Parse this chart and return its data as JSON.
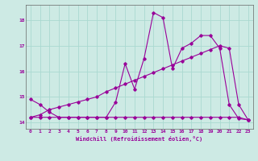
{
  "title": "",
  "xlabel": "Windchill (Refroidissement éolien,°C)",
  "ylabel": "",
  "background_color": "#cdeae4",
  "line_color": "#990099",
  "grid_color": "#aad9d0",
  "xlim": [
    -0.5,
    23.5
  ],
  "ylim": [
    13.75,
    18.6
  ],
  "yticks": [
    14,
    15,
    16,
    17,
    18
  ],
  "xticks": [
    0,
    1,
    2,
    3,
    4,
    5,
    6,
    7,
    8,
    9,
    10,
    11,
    12,
    13,
    14,
    15,
    16,
    17,
    18,
    19,
    20,
    21,
    22,
    23
  ],
  "line1_x": [
    0,
    1,
    2,
    3,
    4,
    5,
    6,
    7,
    8,
    9,
    10,
    11,
    12,
    13,
    14,
    15,
    16,
    17,
    18,
    19,
    20,
    21,
    22,
    23
  ],
  "line1_y": [
    14.9,
    14.7,
    14.4,
    14.2,
    14.2,
    14.2,
    14.2,
    14.2,
    14.2,
    14.8,
    16.3,
    15.3,
    16.5,
    18.3,
    18.1,
    16.1,
    16.9,
    17.1,
    17.4,
    17.4,
    16.9,
    14.7,
    14.15,
    14.1
  ],
  "line2_x": [
    0,
    1,
    2,
    3,
    4,
    5,
    6,
    7,
    8,
    9,
    10,
    11,
    12,
    13,
    14,
    15,
    16,
    17,
    18,
    19,
    20,
    21,
    22,
    23
  ],
  "line2_y": [
    14.2,
    14.2,
    14.2,
    14.2,
    14.2,
    14.2,
    14.2,
    14.2,
    14.2,
    14.2,
    14.2,
    14.2,
    14.2,
    14.2,
    14.2,
    14.2,
    14.2,
    14.2,
    14.2,
    14.2,
    14.2,
    14.2,
    14.2,
    14.1
  ],
  "line3_x": [
    0,
    1,
    2,
    3,
    4,
    5,
    6,
    7,
    8,
    9,
    10,
    11,
    12,
    13,
    14,
    15,
    16,
    17,
    18,
    19,
    20,
    21,
    22,
    23
  ],
  "line3_y": [
    14.2,
    14.3,
    14.5,
    14.6,
    14.7,
    14.8,
    14.9,
    15.0,
    15.2,
    15.35,
    15.5,
    15.65,
    15.8,
    15.95,
    16.1,
    16.25,
    16.4,
    16.55,
    16.7,
    16.85,
    17.0,
    16.9,
    14.7,
    14.1
  ]
}
